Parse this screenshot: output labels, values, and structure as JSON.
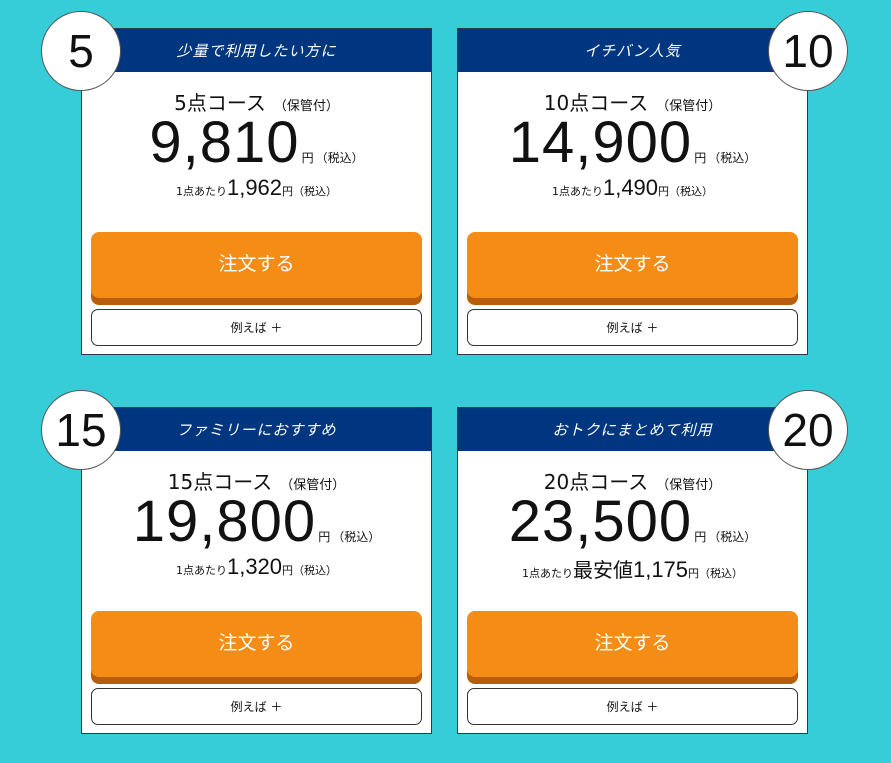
{
  "cards": [
    {
      "count": "5",
      "tagline": "少量で利用したい方に",
      "course": "5点コース",
      "storage": "（保管付）",
      "price": "9,810",
      "yen": "円",
      "tax": "（税込）",
      "per_unit_label": "1点あたり",
      "per_unit_badge": "",
      "per_unit_price": "1,962",
      "order_label": "注文する",
      "example_label": "例えば ＋"
    },
    {
      "count": "10",
      "tagline": "イチバン人気",
      "course": "10点コース",
      "storage": "（保管付）",
      "price": "14,900",
      "yen": "円",
      "tax": "（税込）",
      "per_unit_label": "1点あたり",
      "per_unit_badge": "",
      "per_unit_price": "1,490",
      "order_label": "注文する",
      "example_label": "例えば ＋"
    },
    {
      "count": "15",
      "tagline": "ファミリーにおすすめ",
      "course": "15点コース",
      "storage": "（保管付）",
      "price": "19,800",
      "yen": "円",
      "tax": "（税込）",
      "per_unit_label": "1点あたり",
      "per_unit_badge": "",
      "per_unit_price": "1,320",
      "order_label": "注文する",
      "example_label": "例えば ＋"
    },
    {
      "count": "20",
      "tagline": "おトクにまとめて利用",
      "course": "20点コース",
      "storage": "（保管付）",
      "price": "23,500",
      "yen": "円",
      "tax": "（税込）",
      "per_unit_label": "1点あたり",
      "per_unit_badge": "最安値",
      "per_unit_price": "1,175",
      "order_label": "注文する",
      "example_label": "例えば ＋"
    }
  ],
  "colors": {
    "background": "#36ccd8",
    "header": "#00357f",
    "order_button": "#f58c16"
  }
}
